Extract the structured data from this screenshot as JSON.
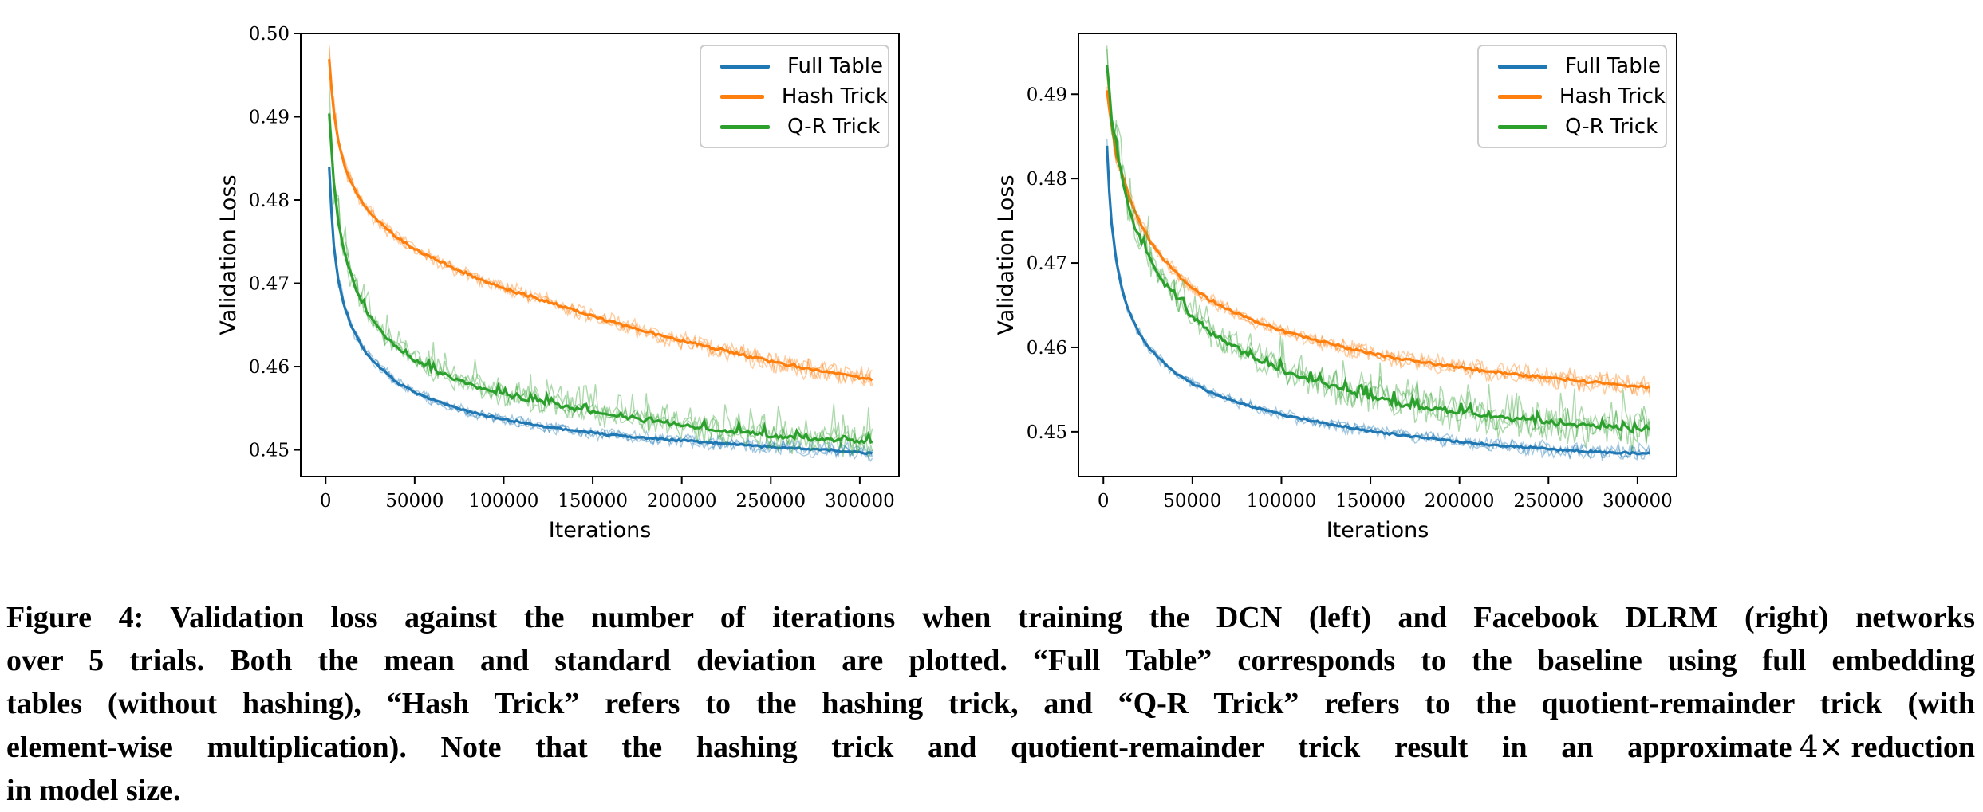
{
  "figure": {
    "caption": {
      "line1": "Figure 4: Validation loss against the number of iterations when training the DCN (left) and Facebook DLRM (right) networks",
      "line2": "over 5 trials. Both the mean and standard deviation are plotted. “Full Table” corresponds to the baseline using full embedding",
      "line3": "tables (without hashing), “Hash Trick” refers to the hashing trick, and “Q-R Trick” refers to the quotient-remainder trick (with",
      "line4_pre": "element-wise multiplication). Note that the hashing trick and quotient-remainder trick result in an approximate",
      "line4_math": "4×",
      "line4_post": "reduction",
      "line5": "in model size."
    }
  },
  "chart_data": [
    {
      "type": "line",
      "name": "DCN (left)",
      "title": "",
      "xlabel": "Iterations",
      "ylabel": "Validation Loss",
      "xlim": [
        -14000,
        322000
      ],
      "ylim": [
        0.4468,
        0.5
      ],
      "x_tick_values": [
        0,
        50000,
        100000,
        150000,
        200000,
        250000,
        300000
      ],
      "x_tick_labels": [
        "0",
        "50000",
        "100000",
        "150000",
        "200000",
        "250000",
        "300000"
      ],
      "y_tick_values": [
        0.45,
        0.46,
        0.47,
        0.48,
        0.49,
        0.5
      ],
      "y_tick_labels": [
        "0.45",
        "0.46",
        "0.47",
        "0.48",
        "0.49",
        "0.50"
      ],
      "legend": {
        "position": "upper right"
      },
      "x": [
        2000,
        4000,
        7000,
        10000,
        14000,
        18000,
        22000,
        27000,
        33000,
        40000,
        50000,
        60000,
        75000,
        90000,
        105000,
        120000,
        140000,
        160000,
        180000,
        200000,
        220000,
        240000,
        260000,
        280000,
        295000,
        307000
      ],
      "series": [
        {
          "name": "Full Table",
          "color": "#1f77b4",
          "std": 0.0006,
          "spiky": false,
          "y": [
            0.484,
            0.4755,
            0.4705,
            0.4676,
            0.4651,
            0.4633,
            0.4619,
            0.4606,
            0.4594,
            0.4581,
            0.4569,
            0.456,
            0.4549,
            0.4541,
            0.4535,
            0.4529,
            0.4523,
            0.4518,
            0.4514,
            0.4511,
            0.4508,
            0.4505,
            0.4502,
            0.45,
            0.4498,
            0.4496
          ]
        },
        {
          "name": "Hash Trick",
          "color": "#ff7f0e",
          "std": 0.0008,
          "spiky": false,
          "y": [
            0.497,
            0.4916,
            0.4872,
            0.4845,
            0.4822,
            0.4806,
            0.4793,
            0.478,
            0.4768,
            0.4755,
            0.4741,
            0.473,
            0.4715,
            0.4702,
            0.4691,
            0.4681,
            0.4667,
            0.4654,
            0.4642,
            0.4631,
            0.4621,
            0.4611,
            0.4602,
            0.4594,
            0.4589,
            0.4585
          ]
        },
        {
          "name": "Q-R Trick",
          "color": "#2ca02c",
          "std": 0.0012,
          "spiky": true,
          "y": [
            0.4905,
            0.483,
            0.4776,
            0.4741,
            0.4711,
            0.4689,
            0.4671,
            0.4654,
            0.4638,
            0.4623,
            0.4608,
            0.4597,
            0.4583,
            0.4572,
            0.4564,
            0.4557,
            0.4549,
            0.4542,
            0.4536,
            0.453,
            0.4524,
            0.4519,
            0.4515,
            0.4512,
            0.4511,
            0.4509
          ]
        }
      ]
    },
    {
      "type": "line",
      "name": "Facebook DLRM (right)",
      "title": "",
      "xlabel": "Iterations",
      "ylabel": "Validation Loss",
      "xlim": [
        -14000,
        322000
      ],
      "ylim": [
        0.4447,
        0.4972
      ],
      "x_tick_values": [
        0,
        50000,
        100000,
        150000,
        200000,
        250000,
        300000
      ],
      "x_tick_labels": [
        "0",
        "50000",
        "100000",
        "150000",
        "200000",
        "250000",
        "300000"
      ],
      "y_tick_values": [
        0.45,
        0.46,
        0.47,
        0.48,
        0.49
      ],
      "y_tick_labels": [
        "0.45",
        "0.46",
        "0.47",
        "0.48",
        "0.49"
      ],
      "legend": {
        "position": "upper right"
      },
      "x": [
        2000,
        4000,
        7000,
        10000,
        14000,
        18000,
        22000,
        27000,
        33000,
        40000,
        50000,
        60000,
        75000,
        90000,
        105000,
        120000,
        140000,
        160000,
        180000,
        200000,
        220000,
        240000,
        260000,
        280000,
        295000,
        307000
      ],
      "series": [
        {
          "name": "Full Table",
          "color": "#1f77b4",
          "std": 0.0006,
          "spiky": false,
          "y": [
            0.484,
            0.4757,
            0.4706,
            0.4672,
            0.4645,
            0.4625,
            0.461,
            0.4596,
            0.4583,
            0.457,
            0.4557,
            0.4547,
            0.4535,
            0.4526,
            0.4518,
            0.4512,
            0.4504,
            0.4498,
            0.4493,
            0.4488,
            0.4484,
            0.4481,
            0.4478,
            0.4476,
            0.4475,
            0.4474
          ]
        },
        {
          "name": "Hash Trick",
          "color": "#ff7f0e",
          "std": 0.0008,
          "spiky": false,
          "y": [
            0.4905,
            0.4872,
            0.483,
            0.4808,
            0.4782,
            0.476,
            0.4742,
            0.4724,
            0.4707,
            0.469,
            0.467,
            0.4656,
            0.464,
            0.4627,
            0.4617,
            0.4608,
            0.4598,
            0.4589,
            0.4582,
            0.4576,
            0.4571,
            0.4566,
            0.4562,
            0.4558,
            0.4555,
            0.4553
          ]
        },
        {
          "name": "Q-R Trick",
          "color": "#2ca02c",
          "std": 0.0015,
          "spiky": true,
          "y": [
            0.4935,
            0.488,
            0.4838,
            0.4805,
            0.4768,
            0.4741,
            0.4722,
            0.4701,
            0.468,
            0.466,
            0.4637,
            0.4618,
            0.4598,
            0.4582,
            0.4569,
            0.4558,
            0.4546,
            0.4536,
            0.4529,
            0.4523,
            0.4518,
            0.4513,
            0.4509,
            0.4506,
            0.4504,
            0.4502
          ]
        }
      ]
    }
  ]
}
